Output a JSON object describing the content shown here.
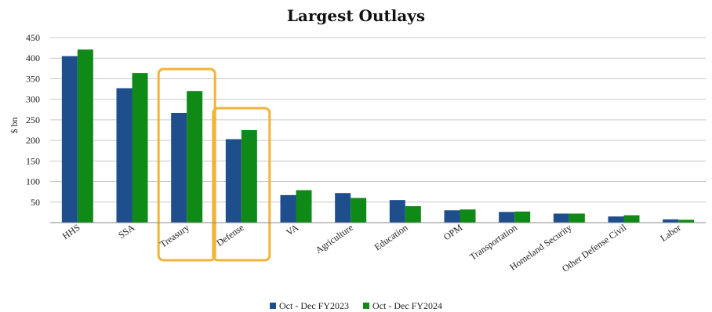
{
  "chart_data": {
    "type": "bar",
    "title": "Largest Outlays",
    "ylabel": "$ bn",
    "xlabel": "",
    "ylim": [
      0,
      450
    ],
    "yticks": [
      50,
      100,
      150,
      200,
      250,
      300,
      350,
      400,
      450
    ],
    "grid": true,
    "legend_position": "bottom",
    "categories": [
      "HHS",
      "SSA",
      "Treasury",
      "Defense",
      "VA",
      "Agriculture",
      "Education",
      "OPM",
      "Transportation",
      "Homeland Security",
      "Other Defense Civil",
      "Labor"
    ],
    "series": [
      {
        "name": "Oct - Dec FY2023",
        "color": "#1f4e8c",
        "values": [
          405,
          327,
          267,
          203,
          67,
          72,
          55,
          30,
          26,
          22,
          15,
          8
        ]
      },
      {
        "name": "Oct - Dec FY2024",
        "color": "#0f8a17",
        "values": [
          421,
          364,
          320,
          225,
          79,
          60,
          40,
          32,
          27,
          22,
          18,
          7
        ]
      }
    ],
    "highlighted_categories": [
      "Treasury",
      "Defense"
    ],
    "highlight_color": "#f2b33a"
  }
}
